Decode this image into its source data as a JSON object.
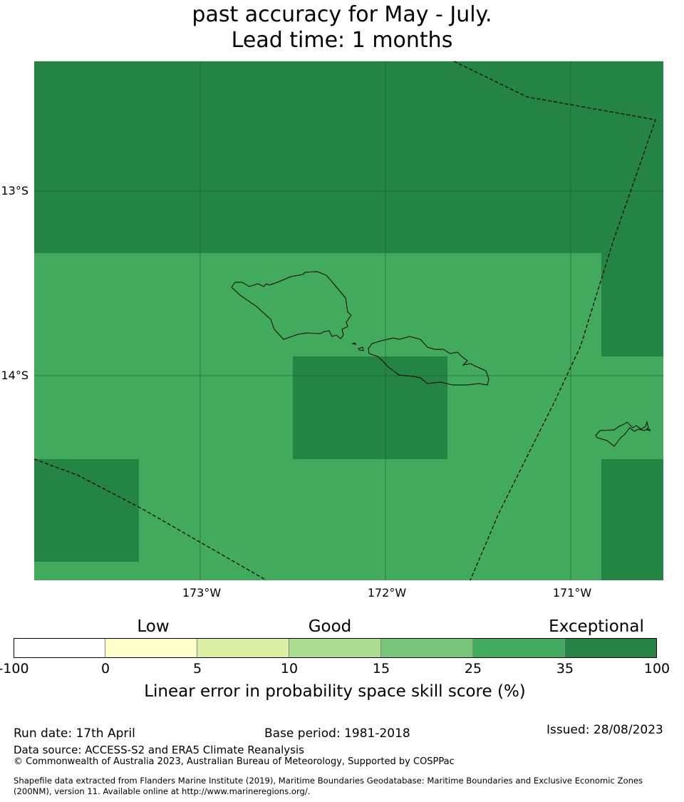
{
  "title": {
    "line1": "past accuracy for May - July.",
    "line2": "Lead time: 1 months"
  },
  "map": {
    "lat_labels": [
      "13°S",
      "14°S"
    ],
    "lon_labels": [
      "173°W",
      "172°W",
      "171°W"
    ],
    "colors": {
      "mid": "#41aa5d",
      "high": "#238443",
      "grid": "#1a5c2e",
      "boundary": "#000000"
    }
  },
  "colorbar": {
    "category_labels": [
      "Low",
      "Good",
      "Exceptional"
    ],
    "ticks": [
      "-100",
      "0",
      "5",
      "10",
      "15",
      "25",
      "35",
      "100"
    ],
    "colors": [
      "#ffffff",
      "#ffffcc",
      "#d9f0a3",
      "#addd8e",
      "#78c679",
      "#41ab5d",
      "#238443"
    ],
    "label": "Linear error in probability space skill score (%)"
  },
  "footer": {
    "run_date": "Run date: 17th April",
    "base_period": "Base period: 1981-2018",
    "issued": "Issued: 28/08/2023",
    "data_source": "Data source: ACCESS-S2 and ERA5 Climate Reanalysis",
    "copyright": "© Commonwealth of Australia 2023, Australian Bureau of Meteorology, Supported by COSPPac",
    "shapefile_line1": "Shapefile data extracted from Flanders Marine Institute (2019), Maritime Boundaries Geodatabase: Maritime Boundaries and Exclusive Economic Zones",
    "shapefile_line2": "(200NM), version 11. Available online at http://www.marineregions.org/."
  }
}
